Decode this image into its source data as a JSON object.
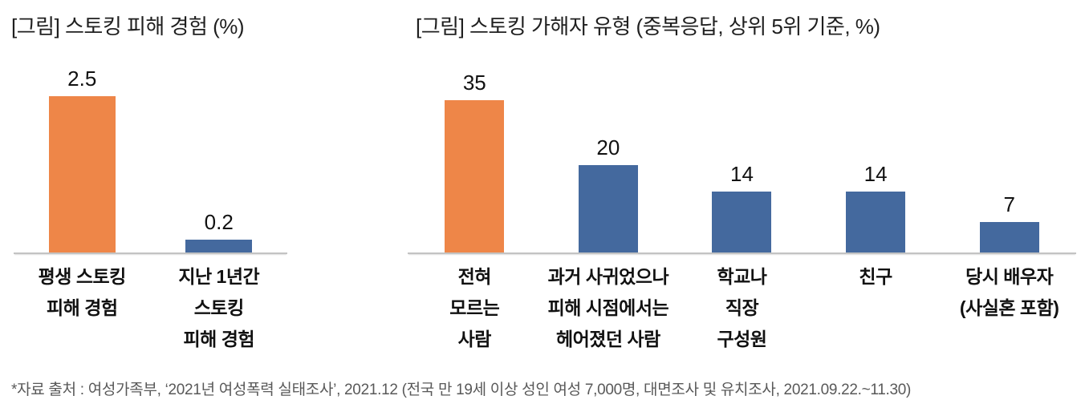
{
  "page": {
    "background": "#ffffff"
  },
  "colors": {
    "highlight_bar": "#EE8648",
    "default_bar": "#44699E",
    "axis_line": "#C3C3C3",
    "title_text": "#1F1F1F",
    "footer_text": "#595959"
  },
  "chart_data": [
    {
      "type": "bar",
      "title": "[그림] 스토킹 피해 경험 (%)",
      "categories": [
        "평생 스토킹\n피해 경험",
        "지난 1년간\n스토킹\n피해 경험"
      ],
      "values": [
        2.5,
        0.2
      ],
      "value_labels": [
        "2.5",
        "0.2"
      ],
      "bar_colors": [
        "#EE8648",
        "#44699E"
      ],
      "ylim": [
        0,
        2.5
      ],
      "grid": false,
      "legend": false,
      "data_labels_position": "above-bar",
      "y_axis_visible": false,
      "x_axis_line": true
    },
    {
      "type": "bar",
      "title": "[그림] 스토킹 가해자 유형 (중복응답, 상위 5위 기준, %)",
      "categories": [
        "전혀\n모르는\n사람",
        "과거 사귀었으나\n피해 시점에서는\n헤어졌던 사람",
        "학교나\n직장\n구성원",
        "친구",
        "당시 배우자\n(사실혼 포함)"
      ],
      "values": [
        35,
        20,
        14,
        14,
        7
      ],
      "value_labels": [
        "35",
        "20",
        "14",
        "14",
        "7"
      ],
      "bar_colors": [
        "#EE8648",
        "#44699E",
        "#44699E",
        "#44699E",
        "#44699E"
      ],
      "ylim": [
        0,
        35
      ],
      "grid": false,
      "legend": false,
      "data_labels_position": "above-bar",
      "y_axis_visible": false,
      "x_axis_line": true
    }
  ],
  "footer": {
    "source_note": "*자료 출처 : 여성가족부, ‘2021년 여성폭력 실태조사’, 2021.12 (전국 만 19세 이상 성인 여성 7,000명, 대면조사 및 유치조사, 2021.09.22.~11.30)"
  }
}
